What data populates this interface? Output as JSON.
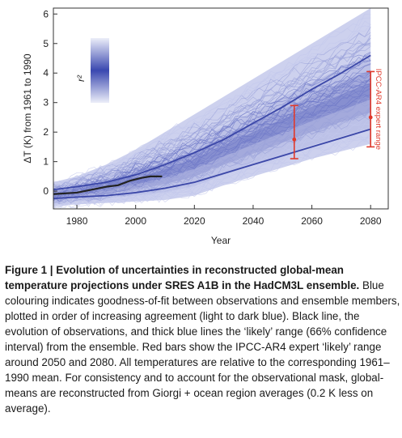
{
  "chart_data": {
    "type": "line",
    "title": "",
    "xlabel": "Year",
    "ylabel": "ΔT (K) from 1961 to 1990",
    "xlim": [
      1972,
      2086
    ],
    "ylim": [
      -0.6,
      6.2
    ],
    "xticks": [
      1980,
      2000,
      2020,
      2040,
      2060,
      2080
    ],
    "yticks": [
      0,
      1,
      2,
      3,
      4,
      5,
      6
    ],
    "grid": false,
    "colorbar": {
      "label": "r²",
      "from_color": "#eceef9",
      "to_color": "#3a48b0",
      "meaning": "goodness-of-fit between observations and ensemble members"
    },
    "series": [
      {
        "name": "observations",
        "color": "#222222",
        "x": [
          1972,
          1980,
          1985,
          1990,
          1994,
          1998,
          2002,
          2005,
          2009
        ],
        "y": [
          -0.1,
          -0.05,
          0.05,
          0.15,
          0.2,
          0.35,
          0.45,
          0.5,
          0.5
        ]
      },
      {
        "name": "likely range upper",
        "color": "#3b47a8",
        "x": [
          1972,
          1980,
          1990,
          2000,
          2010,
          2020,
          2030,
          2040,
          2050,
          2060,
          2070,
          2080
        ],
        "y": [
          0.05,
          0.15,
          0.3,
          0.55,
          0.9,
          1.3,
          1.75,
          2.3,
          2.85,
          3.45,
          4.0,
          4.6
        ]
      },
      {
        "name": "likely range lower",
        "color": "#3b47a8",
        "x": [
          1972,
          1980,
          1990,
          2000,
          2010,
          2020,
          2030,
          2040,
          2050,
          2060,
          2070,
          2080
        ],
        "y": [
          -0.25,
          -0.2,
          -0.15,
          -0.05,
          0.1,
          0.3,
          0.6,
          0.9,
          1.2,
          1.5,
          1.8,
          2.1
        ]
      }
    ],
    "ensemble_envelope": {
      "x": [
        1972,
        1980,
        1990,
        2000,
        2010,
        2020,
        2030,
        2040,
        2050,
        2060,
        2070,
        2080
      ],
      "upper": [
        0.3,
        0.5,
        0.9,
        1.4,
        2.0,
        2.6,
        3.2,
        3.8,
        4.4,
        5.0,
        5.6,
        6.2
      ],
      "lower": [
        -0.5,
        -0.45,
        -0.4,
        -0.35,
        -0.3,
        -0.15,
        0.2,
        0.5,
        0.8,
        1.1,
        1.35,
        1.6
      ]
    },
    "expert_ranges": [
      {
        "year": 2054,
        "low": 1.1,
        "mid": 1.75,
        "high": 2.9,
        "color": "#e0392b"
      },
      {
        "year": 2080,
        "low": 1.5,
        "mid": 2.5,
        "high": 4.05,
        "color": "#e0392b",
        "label": "IPCC-AR4 expert range"
      }
    ]
  },
  "caption": {
    "label": "Figure 1 |",
    "bold_title": "Evolution of uncertainties in reconstructed global-mean temperature projections under SRES A1B in the HadCM3L ensemble.",
    "body": "Blue colouring indicates goodness-of-fit between observations and ensemble members, plotted in order of increasing agreement (light to dark blue). Black line, the evolution of observations, and thick blue lines the ‘likely’ range (66% confidence interval) from the ensemble. Red bars show the IPCC-AR4 expert ‘likely’ range around 2050 and 2080. All temperatures are relative to the corresponding 1961–1990 mean. For consistency and to account for the observational mask, global-means are reconstructed from Giorgi + ocean region averages (0.2 K less on average)."
  }
}
